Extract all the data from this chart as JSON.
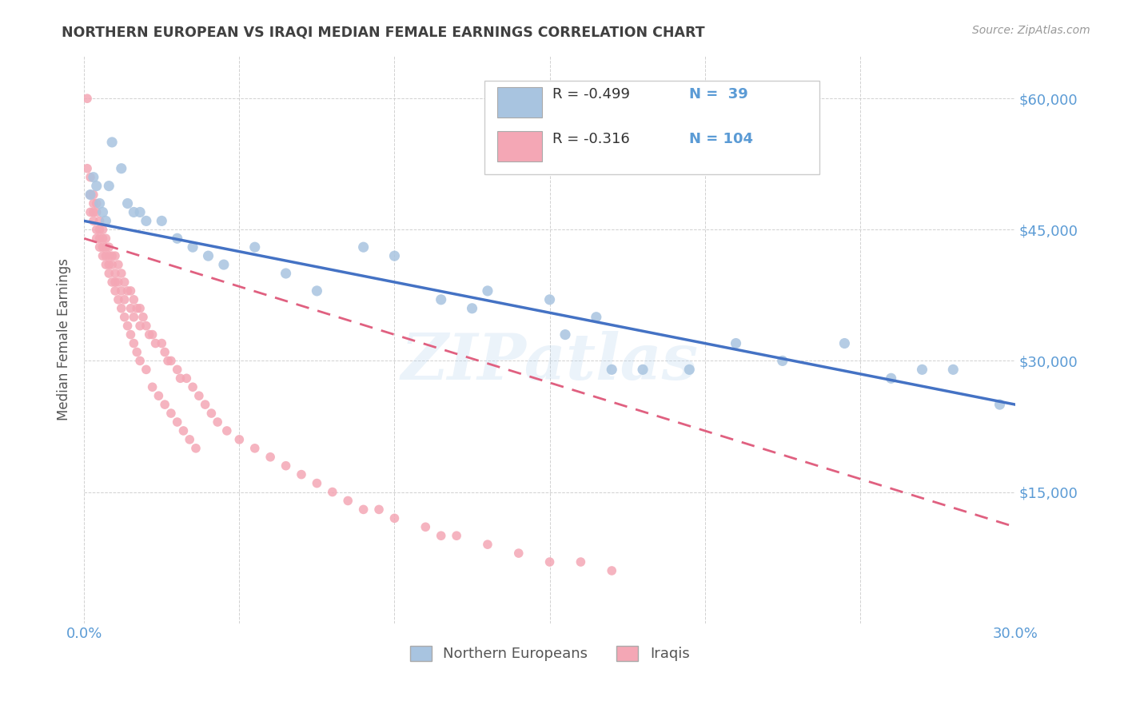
{
  "title": "NORTHERN EUROPEAN VS IRAQI MEDIAN FEMALE EARNINGS CORRELATION CHART",
  "source": "Source: ZipAtlas.com",
  "ylabel": "Median Female Earnings",
  "y_ticks": [
    0,
    15000,
    30000,
    45000,
    60000
  ],
  "y_tick_labels": [
    "",
    "$15,000",
    "$30,000",
    "$45,000",
    "$60,000"
  ],
  "xlim": [
    0.0,
    0.3
  ],
  "ylim": [
    0,
    65000
  ],
  "watermark": "ZIPatlas",
  "legend_r1": "R = -0.499",
  "legend_n1": "N =  39",
  "legend_r2": "R = -0.316",
  "legend_n2": "N = 104",
  "blue_color": "#A8C4E0",
  "pink_color": "#F4A7B5",
  "blue_line_color": "#4472C4",
  "pink_line_color": "#E06080",
  "label_color": "#5B9BD5",
  "title_color": "#404040",
  "ne_line": [
    0.0,
    46000,
    0.3,
    25000
  ],
  "iq_line": [
    0.0,
    44000,
    0.3,
    11000
  ],
  "northern_europeans_x": [
    0.002,
    0.003,
    0.004,
    0.005,
    0.006,
    0.007,
    0.008,
    0.009,
    0.012,
    0.014,
    0.016,
    0.018,
    0.02,
    0.025,
    0.03,
    0.035,
    0.04,
    0.045,
    0.055,
    0.065,
    0.075,
    0.09,
    0.1,
    0.115,
    0.13,
    0.15,
    0.165,
    0.18,
    0.195,
    0.21,
    0.225,
    0.245,
    0.26,
    0.27,
    0.28,
    0.125,
    0.155,
    0.17,
    0.295
  ],
  "northern_europeans_y": [
    49000,
    51000,
    50000,
    48000,
    47000,
    46000,
    50000,
    55000,
    52000,
    48000,
    47000,
    47000,
    46000,
    46000,
    44000,
    43000,
    42000,
    41000,
    43000,
    40000,
    38000,
    43000,
    42000,
    37000,
    38000,
    37000,
    35000,
    29000,
    29000,
    32000,
    30000,
    32000,
    28000,
    29000,
    29000,
    36000,
    33000,
    29000,
    25000
  ],
  "iraqis_x": [
    0.001,
    0.001,
    0.002,
    0.002,
    0.002,
    0.003,
    0.003,
    0.003,
    0.003,
    0.004,
    0.004,
    0.004,
    0.005,
    0.005,
    0.005,
    0.006,
    0.006,
    0.006,
    0.007,
    0.007,
    0.007,
    0.008,
    0.008,
    0.008,
    0.009,
    0.009,
    0.01,
    0.01,
    0.01,
    0.011,
    0.011,
    0.012,
    0.012,
    0.013,
    0.013,
    0.014,
    0.015,
    0.015,
    0.016,
    0.016,
    0.017,
    0.018,
    0.018,
    0.019,
    0.02,
    0.021,
    0.022,
    0.023,
    0.025,
    0.026,
    0.027,
    0.028,
    0.03,
    0.031,
    0.033,
    0.035,
    0.037,
    0.039,
    0.041,
    0.043,
    0.046,
    0.05,
    0.055,
    0.06,
    0.065,
    0.07,
    0.075,
    0.08,
    0.085,
    0.09,
    0.095,
    0.1,
    0.11,
    0.115,
    0.12,
    0.13,
    0.14,
    0.15,
    0.16,
    0.17,
    0.004,
    0.005,
    0.006,
    0.007,
    0.008,
    0.009,
    0.01,
    0.011,
    0.012,
    0.013,
    0.014,
    0.015,
    0.016,
    0.017,
    0.018,
    0.02,
    0.022,
    0.024,
    0.026,
    0.028,
    0.03,
    0.032,
    0.034,
    0.036
  ],
  "iraqis_y": [
    60000,
    52000,
    51000,
    49000,
    47000,
    49000,
    48000,
    47000,
    46000,
    48000,
    47000,
    45000,
    46000,
    45000,
    44000,
    45000,
    44000,
    43000,
    44000,
    43000,
    42000,
    43000,
    42000,
    41000,
    42000,
    41000,
    42000,
    40000,
    39000,
    41000,
    39000,
    40000,
    38000,
    39000,
    37000,
    38000,
    38000,
    36000,
    37000,
    35000,
    36000,
    36000,
    34000,
    35000,
    34000,
    33000,
    33000,
    32000,
    32000,
    31000,
    30000,
    30000,
    29000,
    28000,
    28000,
    27000,
    26000,
    25000,
    24000,
    23000,
    22000,
    21000,
    20000,
    19000,
    18000,
    17000,
    16000,
    15000,
    14000,
    13000,
    13000,
    12000,
    11000,
    10000,
    10000,
    9000,
    8000,
    7000,
    7000,
    6000,
    44000,
    43000,
    42000,
    41000,
    40000,
    39000,
    38000,
    37000,
    36000,
    35000,
    34000,
    33000,
    32000,
    31000,
    30000,
    29000,
    27000,
    26000,
    25000,
    24000,
    23000,
    22000,
    21000,
    20000
  ]
}
